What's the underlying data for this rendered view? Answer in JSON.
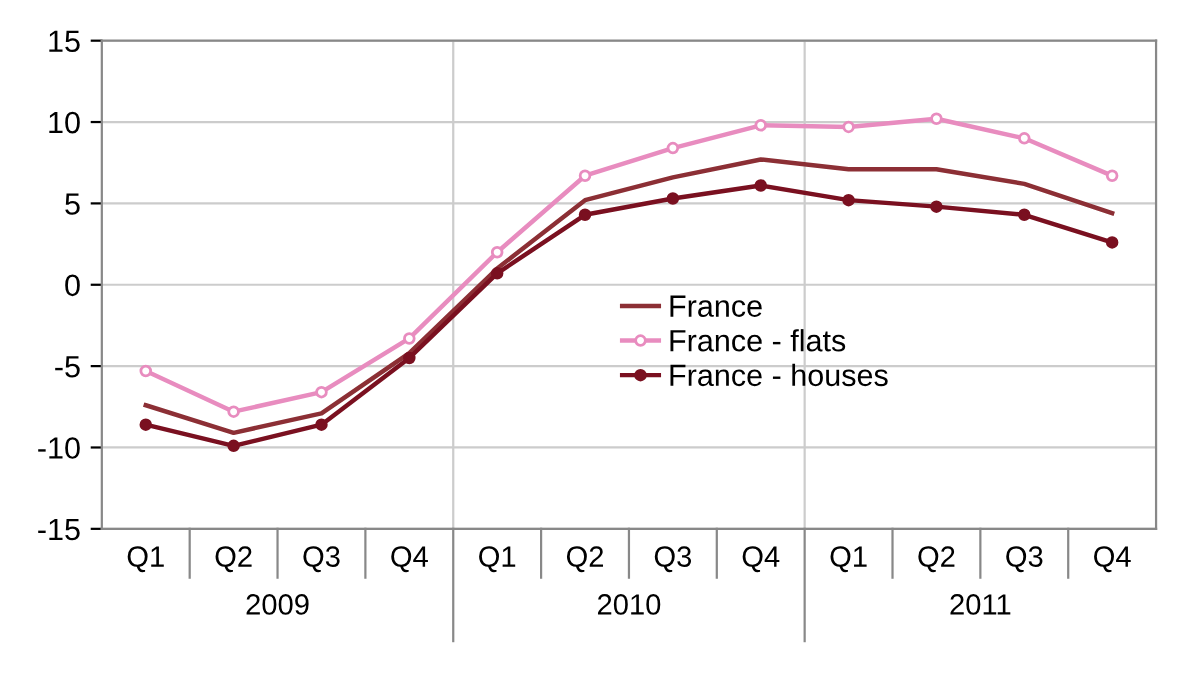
{
  "chart_data": {
    "type": "line",
    "categories": [
      "Q1",
      "Q2",
      "Q3",
      "Q4",
      "Q1",
      "Q2",
      "Q3",
      "Q4",
      "Q1",
      "Q2",
      "Q3",
      "Q4"
    ],
    "annotations": [
      "2009",
      "2010",
      "2011"
    ],
    "series": [
      {
        "name": "France",
        "color": "#8c2f35",
        "marker": "none",
        "values": [
          -7.4,
          -9.1,
          -7.9,
          -4.2,
          1.0,
          5.2,
          6.6,
          7.7,
          7.1,
          7.1,
          6.2,
          4.4
        ]
      },
      {
        "name": "France - flats",
        "color": "#e88cbf",
        "marker": "circle",
        "values": [
          -5.3,
          -7.8,
          -6.6,
          -3.3,
          2.0,
          6.7,
          8.4,
          9.8,
          9.7,
          10.2,
          9.0,
          6.7
        ]
      },
      {
        "name": "France - houses",
        "color": "#7a1020",
        "marker": "circle",
        "values": [
          -8.6,
          -9.9,
          -8.6,
          -4.5,
          0.7,
          4.3,
          5.3,
          6.1,
          5.2,
          4.8,
          4.3,
          2.6
        ]
      }
    ],
    "ylim": [
      -15,
      15
    ],
    "yticks": [
      -15,
      -10,
      -5,
      0,
      5,
      10,
      15
    ],
    "grid": "y",
    "legend": "center",
    "line_style": "solid"
  }
}
